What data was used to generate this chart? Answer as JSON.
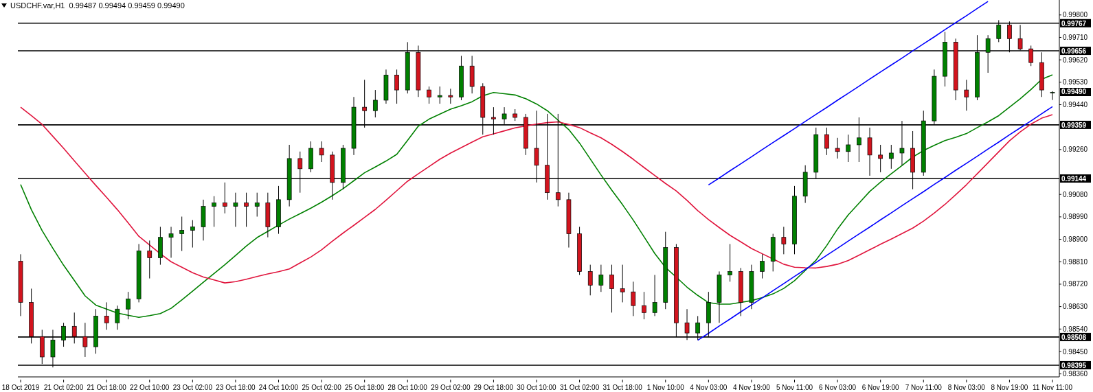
{
  "chart_data": {
    "type": "candlestick",
    "title": "USDCHF.var,H1  0.99487 0.99494 0.99459 0.99490",
    "categories": [
      "18 Oct 2019",
      null,
      null,
      null,
      "21 Oct 02:00",
      null,
      null,
      null,
      "21 Oct 18:00",
      null,
      null,
      null,
      "22 Oct 10:00",
      null,
      null,
      null,
      "23 Oct 02:00",
      null,
      null,
      null,
      "23 Oct 18:00",
      null,
      null,
      null,
      "24 Oct 10:00",
      null,
      null,
      null,
      "25 Oct 02:00",
      null,
      null,
      null,
      "25 Oct 18:00",
      null,
      null,
      null,
      "28 Oct 10:00",
      null,
      null,
      null,
      "29 Oct 02:00",
      null,
      null,
      null,
      "29 Oct 18:00",
      null,
      null,
      null,
      "30 Oct 10:00",
      null,
      null,
      null,
      "31 Oct 02:00",
      null,
      null,
      null,
      "31 Oct 18:00",
      null,
      null,
      null,
      "1 Nov 10:00",
      null,
      null,
      null,
      "4 Nov 03:00",
      null,
      null,
      null,
      "4 Nov 19:00",
      null,
      null,
      null,
      "5 Nov 11:00",
      null,
      null,
      null,
      "6 Nov 03:00",
      null,
      null,
      null,
      "6 Nov 19:00",
      null,
      null,
      null,
      "7 Nov 11:00",
      null,
      null,
      null,
      "8 Nov 03:00",
      null,
      null,
      null,
      "8 Nov 19:00",
      null,
      null,
      null,
      "11 Nov 11:00"
    ],
    "ohlc": [
      [
        0.98812,
        0.9884,
        0.98592,
        0.98647
      ],
      [
        0.98647,
        0.98702,
        0.98482,
        0.9851
      ],
      [
        0.9851,
        0.98537,
        0.984,
        0.98428
      ],
      [
        0.98428,
        0.98537,
        0.98386,
        0.98496
      ],
      [
        0.98496,
        0.98565,
        0.98469,
        0.98551
      ],
      [
        0.98551,
        0.98606,
        0.98482,
        0.9851
      ],
      [
        0.9851,
        0.98565,
        0.98428,
        0.98469
      ],
      [
        0.98469,
        0.9862,
        0.98441,
        0.98592
      ],
      [
        0.98592,
        0.98647,
        0.98537,
        0.98565
      ],
      [
        0.98565,
        0.98634,
        0.98537,
        0.9862
      ],
      [
        0.9862,
        0.98689,
        0.98579,
        0.98661
      ],
      [
        0.98661,
        0.98881,
        0.98647,
        0.98853
      ],
      [
        0.98853,
        0.98895,
        0.98743,
        0.98826
      ],
      [
        0.98826,
        0.9895,
        0.98798,
        0.98908
      ],
      [
        0.98908,
        0.9895,
        0.98826,
        0.98922
      ],
      [
        0.98922,
        0.98991,
        0.98853,
        0.98936
      ],
      [
        0.98936,
        0.98977,
        0.98867,
        0.9895
      ],
      [
        0.9895,
        0.99059,
        0.98895,
        0.99032
      ],
      [
        0.99032,
        0.99073,
        0.9895,
        0.99046
      ],
      [
        0.99046,
        0.99128,
        0.99004,
        0.99032
      ],
      [
        0.99032,
        0.99087,
        0.9895,
        0.99046
      ],
      [
        0.99046,
        0.99087,
        0.9895,
        0.99032
      ],
      [
        0.99032,
        0.99087,
        0.98991,
        0.99046
      ],
      [
        0.99046,
        0.99087,
        0.98908,
        0.9895
      ],
      [
        0.9895,
        0.99114,
        0.98922,
        0.99059
      ],
      [
        0.99059,
        0.99279,
        0.99032,
        0.99224
      ],
      [
        0.99224,
        0.99252,
        0.99087,
        0.99183
      ],
      [
        0.99183,
        0.99293,
        0.99169,
        0.99265
      ],
      [
        0.99265,
        0.99293,
        0.9921,
        0.99238
      ],
      [
        0.99238,
        0.99252,
        0.99059,
        0.99128
      ],
      [
        0.99128,
        0.99279,
        0.99101,
        0.99265
      ],
      [
        0.99265,
        0.99471,
        0.99238,
        0.9943
      ],
      [
        0.9943,
        0.9954,
        0.99348,
        0.99416
      ],
      [
        0.99416,
        0.99499,
        0.99389,
        0.99458
      ],
      [
        0.99458,
        0.99581,
        0.99444,
        0.99559
      ],
      [
        0.99559,
        0.99581,
        0.99444,
        0.99499
      ],
      [
        0.99499,
        0.99691,
        0.99485,
        0.9965
      ],
      [
        0.9965,
        0.99677,
        0.99471,
        0.99499
      ],
      [
        0.99499,
        0.99513,
        0.99444,
        0.99471
      ],
      [
        0.99471,
        0.99513,
        0.99444,
        0.99477
      ],
      [
        0.99477,
        0.99504,
        0.99444,
        0.99471
      ],
      [
        0.99471,
        0.99636,
        0.99458,
        0.99595
      ],
      [
        0.99595,
        0.99636,
        0.99485,
        0.99513
      ],
      [
        0.99513,
        0.99526,
        0.9932,
        0.99389
      ],
      [
        0.99389,
        0.9943,
        0.9932,
        0.99383
      ],
      [
        0.99383,
        0.9943,
        0.99362,
        0.99403
      ],
      [
        0.99403,
        0.99422,
        0.99375,
        0.99389
      ],
      [
        0.99389,
        0.99403,
        0.99238,
        0.99265
      ],
      [
        0.99265,
        0.99416,
        0.99128,
        0.99197
      ],
      [
        0.99197,
        0.99403,
        0.99059,
        0.99087
      ],
      [
        0.99087,
        0.99403,
        0.99032,
        0.99059
      ],
      [
        0.99059,
        0.99087,
        0.98867,
        0.98922
      ],
      [
        0.98922,
        0.9895,
        0.98757,
        0.98771
      ],
      [
        0.98771,
        0.98798,
        0.98675,
        0.98716
      ],
      [
        0.98716,
        0.98798,
        0.98689,
        0.98757
      ],
      [
        0.98757,
        0.98798,
        0.98606,
        0.98702
      ],
      [
        0.98702,
        0.98798,
        0.98647,
        0.98689
      ],
      [
        0.98689,
        0.9873,
        0.98592,
        0.98634
      ],
      [
        0.98634,
        0.98689,
        0.98579,
        0.98606
      ],
      [
        0.98606,
        0.98757,
        0.98592,
        0.98647
      ],
      [
        0.98647,
        0.9893,
        0.9862,
        0.98867
      ],
      [
        0.98867,
        0.98881,
        0.9851,
        0.98565
      ],
      [
        0.98565,
        0.9862,
        0.98496,
        0.98524
      ],
      [
        0.98524,
        0.98592,
        0.98496,
        0.98565
      ],
      [
        0.98565,
        0.98689,
        0.9851,
        0.98647
      ],
      [
        0.98647,
        0.98771,
        0.98565,
        0.98757
      ],
      [
        0.98757,
        0.98881,
        0.9873,
        0.98771
      ],
      [
        0.98771,
        0.98785,
        0.98592,
        0.98647
      ],
      [
        0.98647,
        0.98798,
        0.9862,
        0.98771
      ],
      [
        0.98771,
        0.9884,
        0.98743,
        0.98812
      ],
      [
        0.98812,
        0.98922,
        0.98771,
        0.98908
      ],
      [
        0.98908,
        0.9895,
        0.9884,
        0.98881
      ],
      [
        0.98881,
        0.99114,
        0.9884,
        0.99073
      ],
      [
        0.99073,
        0.99197,
        0.99046,
        0.99169
      ],
      [
        0.99169,
        0.99348,
        0.99142,
        0.9932
      ],
      [
        0.9932,
        0.99348,
        0.99238,
        0.99265
      ],
      [
        0.99265,
        0.99307,
        0.99224,
        0.99252
      ],
      [
        0.99252,
        0.9932,
        0.9921,
        0.99279
      ],
      [
        0.99279,
        0.99389,
        0.9921,
        0.99307
      ],
      [
        0.99307,
        0.99348,
        0.99155,
        0.99238
      ],
      [
        0.99238,
        0.99279,
        0.99169,
        0.99224
      ],
      [
        0.99224,
        0.99279,
        0.99183,
        0.99246
      ],
      [
        0.99246,
        0.99375,
        0.99197,
        0.99265
      ],
      [
        0.99265,
        0.99334,
        0.99101,
        0.99169
      ],
      [
        0.99169,
        0.99416,
        0.99155,
        0.99375
      ],
      [
        0.99375,
        0.99581,
        0.99362,
        0.99554
      ],
      [
        0.99554,
        0.99732,
        0.99513,
        0.99691
      ],
      [
        0.99691,
        0.99705,
        0.99458,
        0.99499
      ],
      [
        0.99499,
        0.9954,
        0.99416,
        0.99471
      ],
      [
        0.99471,
        0.99719,
        0.99458,
        0.9965
      ],
      [
        0.9965,
        0.99719,
        0.99568,
        0.99705
      ],
      [
        0.99705,
        0.99779,
        0.99691,
        0.9976
      ],
      [
        0.9976,
        0.99774,
        0.9965,
        0.99705
      ],
      [
        0.99705,
        0.9976,
        0.99658,
        0.99664
      ],
      [
        0.99664,
        0.99677,
        0.99595,
        0.99609
      ],
      [
        0.99609,
        0.9965,
        0.99471,
        0.99499
      ],
      [
        0.99487,
        0.99494,
        0.99459,
        0.9949
      ]
    ],
    "series": [
      {
        "type": "line",
        "color": "#008000",
        "values": [
          0.9912,
          0.99019,
          0.98935,
          0.98864,
          0.98796,
          0.98735,
          0.98673,
          0.98636,
          0.9862,
          0.98604,
          0.98595,
          0.98587,
          0.98594,
          0.98602,
          0.98623,
          0.98657,
          0.98692,
          0.98728,
          0.98763,
          0.98798,
          0.98835,
          0.98873,
          0.98907,
          0.98932,
          0.98957,
          0.98981,
          0.99003,
          0.99025,
          0.99049,
          0.99075,
          0.99103,
          0.99135,
          0.99167,
          0.9919,
          0.99214,
          0.99241,
          0.99297,
          0.99354,
          0.99382,
          0.99402,
          0.99422,
          0.99436,
          0.99452,
          0.99476,
          0.99489,
          0.99484,
          0.99479,
          0.99464,
          0.99443,
          0.99416,
          0.99378,
          0.9934,
          0.99286,
          0.99222,
          0.99158,
          0.99097,
          0.99039,
          0.98977,
          0.9891,
          0.98843,
          0.98787,
          0.98748,
          0.98708,
          0.98675,
          0.98646,
          0.9864,
          0.9864,
          0.98647,
          0.98654,
          0.98666,
          0.98681,
          0.98703,
          0.98734,
          0.98775,
          0.98816,
          0.98875,
          0.98941,
          0.98998,
          0.99045,
          0.99092,
          0.99129,
          0.99163,
          0.99196,
          0.9923,
          0.99256,
          0.99277,
          0.99296,
          0.99309,
          0.99324,
          0.99348,
          0.99371,
          0.99396,
          0.9943,
          0.99464,
          0.99501,
          0.99542,
          0.9956
        ]
      },
      {
        "type": "line",
        "color": "#e0143c",
        "values": [
          0.9943,
          0.99396,
          0.99361,
          0.99313,
          0.99265,
          0.99215,
          0.99165,
          0.99116,
          0.99068,
          0.99019,
          0.98966,
          0.98912,
          0.98877,
          0.98842,
          0.9881,
          0.98788,
          0.98766,
          0.98749,
          0.98737,
          0.98725,
          0.9873,
          0.9874,
          0.98751,
          0.98761,
          0.9877,
          0.98781,
          0.98805,
          0.98829,
          0.98858,
          0.98892,
          0.98925,
          0.98956,
          0.98988,
          0.9902,
          0.99057,
          0.99095,
          0.99133,
          0.99163,
          0.99192,
          0.99221,
          0.99246,
          0.99268,
          0.9929,
          0.99311,
          0.99323,
          0.99335,
          0.99347,
          0.99355,
          0.99362,
          0.99368,
          0.99371,
          0.99361,
          0.99348,
          0.99327,
          0.99307,
          0.99281,
          0.99252,
          0.99221,
          0.99188,
          0.99156,
          0.99124,
          0.99094,
          0.99056,
          0.99015,
          0.98979,
          0.98947,
          0.98916,
          0.9889,
          0.98863,
          0.98842,
          0.98821,
          0.988,
          0.98788,
          0.98786,
          0.98785,
          0.98791,
          0.988,
          0.98815,
          0.98836,
          0.98858,
          0.9888,
          0.98901,
          0.98923,
          0.98945,
          0.98973,
          0.99005,
          0.9904,
          0.99079,
          0.99119,
          0.99163,
          0.99207,
          0.99251,
          0.99295,
          0.99331,
          0.99362,
          0.99386,
          0.994
        ]
      },
      {
        "type": "line",
        "color": "#0000ff",
        "values": [
          null,
          null,
          null,
          null,
          null,
          null,
          null,
          null,
          null,
          null,
          null,
          null,
          null,
          null,
          null,
          null,
          null,
          null,
          null,
          null,
          null,
          null,
          null,
          null,
          null,
          null,
          null,
          null,
          null,
          null,
          null,
          null,
          null,
          null,
          null,
          null,
          null,
          null,
          null,
          null,
          null,
          null,
          null,
          null,
          null,
          null,
          null,
          null,
          null,
          null,
          null,
          null,
          null,
          null,
          null,
          null,
          null,
          null,
          null,
          null,
          null,
          null,
          null,
          null,
          0.99118,
          0.99146,
          0.99175,
          0.99203,
          0.99231,
          0.9926,
          0.99288,
          0.99316,
          0.99344,
          0.99373,
          0.99401,
          0.99429,
          0.99458,
          0.99486,
          0.99514,
          0.99543,
          0.99571,
          0.99599,
          0.99627,
          0.99656,
          0.99684,
          0.99712,
          0.99741,
          0.99769,
          0.99797,
          0.99826,
          0.99854,
          null,
          null,
          null,
          null,
          null,
          null
        ]
      },
      {
        "type": "line",
        "color": "#0000ff",
        "values": [
          null,
          null,
          null,
          null,
          null,
          null,
          null,
          null,
          null,
          null,
          null,
          null,
          null,
          null,
          null,
          null,
          null,
          null,
          null,
          null,
          null,
          null,
          null,
          null,
          null,
          null,
          null,
          null,
          null,
          null,
          null,
          null,
          null,
          null,
          null,
          null,
          null,
          null,
          null,
          null,
          null,
          null,
          null,
          null,
          null,
          null,
          null,
          null,
          null,
          null,
          null,
          null,
          null,
          null,
          null,
          null,
          null,
          null,
          null,
          null,
          null,
          null,
          null,
          0.98495,
          0.98523,
          0.98552,
          0.9858,
          0.98609,
          0.98637,
          0.98665,
          0.98694,
          0.98722,
          0.98751,
          0.98779,
          0.98807,
          0.98836,
          0.98864,
          0.98893,
          0.98921,
          0.98949,
          0.98978,
          0.99006,
          0.99035,
          0.99063,
          0.99091,
          0.9912,
          0.99148,
          0.99177,
          0.99205,
          0.99233,
          0.99262,
          0.9929,
          0.99319,
          0.99347,
          0.99375,
          0.99404,
          0.99432
        ]
      }
    ],
    "ylim": [
      0.98348,
      0.9986
    ],
    "yticks": [
      {
        "value": 0.9836,
        "label": "0.98360"
      },
      {
        "value": 0.9845,
        "label": "0.98450"
      },
      {
        "value": 0.9854,
        "label": "0.98540"
      },
      {
        "value": 0.9863,
        "label": "0.98630"
      },
      {
        "value": 0.9872,
        "label": "0.98720"
      },
      {
        "value": 0.9881,
        "label": "0.98810"
      },
      {
        "value": 0.989,
        "label": "0.98900"
      },
      {
        "value": 0.9899,
        "label": "0.98990"
      },
      {
        "value": 0.9908,
        "label": "0.99080"
      },
      {
        "value": 0.9926,
        "label": "0.99260"
      },
      {
        "value": 0.9944,
        "label": "0.99440"
      },
      {
        "value": 0.9953,
        "label": "0.99530"
      },
      {
        "value": 0.9962,
        "label": "0.99620"
      },
      {
        "value": 0.9971,
        "label": "0.99710"
      },
      {
        "value": 0.998,
        "label": "0.99800"
      }
    ],
    "ref_lines": [
      {
        "axis": "y",
        "value": 0.99767,
        "label": "0.99767",
        "color": "#000000"
      },
      {
        "axis": "y",
        "value": 0.99656,
        "label": "0.99656",
        "color": "#000000"
      },
      {
        "axis": "y",
        "value": 0.99359,
        "label": "0.99359",
        "color": "#000000"
      },
      {
        "axis": "y",
        "value": 0.99144,
        "label": "0.99144",
        "color": "#000000"
      },
      {
        "axis": "y",
        "value": 0.98508,
        "label": "0.98508",
        "color": "#000000"
      },
      {
        "axis": "y",
        "value": 0.98395,
        "label": "0.98395",
        "color": "#000000"
      }
    ],
    "annotations": [
      "0.99490"
    ],
    "grid": false,
    "legend": false
  }
}
